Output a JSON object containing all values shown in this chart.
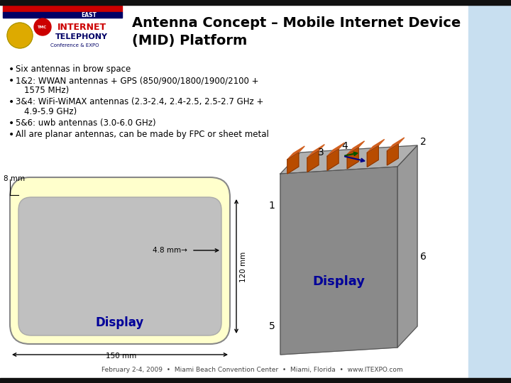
{
  "title_line1": "Antenna Concept – Mobile Internet Device",
  "title_line2": "(MID) Platform",
  "bullet_lines": [
    [
      "Six antennas in brow space"
    ],
    [
      "1&2: WWAN antennas + GPS (850/900/1800/1900/2100 +",
      "1575 MHz)"
    ],
    [
      "3&4: WiFi-WiMAX antennas (2.3-2.4, 2.4-2.5, 2.5-2.7 GHz +",
      "4.9-5.9 GHz)"
    ],
    [
      "5&6: uwb antennas (3.0-6.0 GHz)"
    ],
    [
      "All are planar antennas, can be made by FPC or sheet metal"
    ]
  ],
  "footer": "February 2-4, 2009  •  Miami Beach Convention Center  •  Miami, Florida  •  www.ITEXPO.com",
  "bg_color": "#ffffff",
  "title_color": "#000000",
  "bullet_color": "#000000",
  "footer_color": "#444444",
  "display_label_color": "#000099",
  "antenna_color": "#b84c00",
  "antenna_dark": "#7a3000",
  "brow_color": "#ffffcc",
  "brow_edge": "#888888",
  "inner_color": "#c0c0c0",
  "inner_edge": "#aaaaaa",
  "device_front": "#8a8a8a",
  "device_top": "#b0b0b0",
  "device_right": "#9a9a9a",
  "device_edge": "#555555",
  "right_panel_color": "#c8dff0",
  "dim_8mm": "8 mm",
  "dim_4p8mm": "4.8 mm",
  "dim_120mm": "120 mm",
  "dim_150mm": "150 mm",
  "label_display": "Display",
  "numbers": [
    "1",
    "2",
    "3",
    "4",
    "5",
    "6"
  ]
}
